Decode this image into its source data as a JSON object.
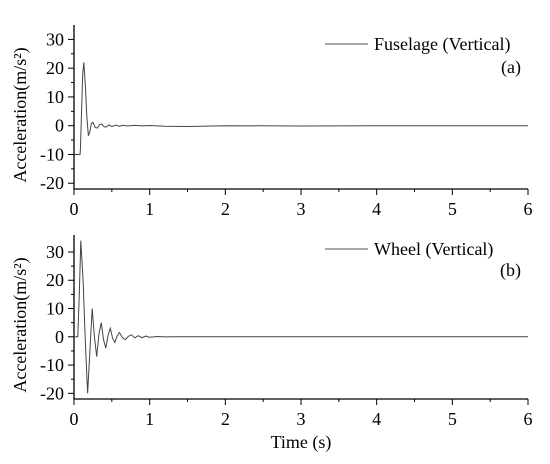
{
  "chart_data": [
    {
      "type": "line",
      "panel_label": "(a)",
      "xlabel": "",
      "ylabel": "Acceleration(m/s²)",
      "xlim": [
        0,
        6
      ],
      "ylim": [
        -22,
        35
      ],
      "xticks": [
        0,
        1,
        2,
        3,
        4,
        5,
        6
      ],
      "yticks": [
        -20,
        -10,
        0,
        10,
        20,
        30
      ],
      "legend_position": "top-right",
      "series": [
        {
          "name": "Fuselage (Vertical)",
          "x": [
            0,
            0.08,
            0.085,
            0.1,
            0.115,
            0.13,
            0.15,
            0.17,
            0.19,
            0.21,
            0.23,
            0.25,
            0.28,
            0.31,
            0.34,
            0.37,
            0.4,
            0.43,
            0.46,
            0.5,
            0.55,
            0.6,
            0.65,
            0.7,
            0.8,
            0.9,
            1.0,
            1.2,
            1.5,
            2.0,
            3.0,
            4.0,
            5.0,
            6.0
          ],
          "values": [
            -10,
            -10,
            -8,
            5,
            18,
            22,
            14,
            3,
            -3.5,
            -2,
            0.8,
            1.2,
            -0.6,
            -0.8,
            0.5,
            0.5,
            -0.4,
            -0.4,
            0.3,
            -0.3,
            0.2,
            -0.2,
            0.15,
            -0.1,
            0.1,
            -0.05,
            0.05,
            -0.2,
            -0.3,
            0,
            -0.1,
            0,
            0,
            0
          ]
        }
      ]
    },
    {
      "type": "line",
      "panel_label": "(b)",
      "xlabel": "Time (s)",
      "ylabel": "Acceleration(m/s²)",
      "xlim": [
        0,
        6
      ],
      "ylim": [
        -22,
        36
      ],
      "xticks": [
        0,
        1,
        2,
        3,
        4,
        5,
        6
      ],
      "yticks": [
        -20,
        -10,
        0,
        10,
        20,
        30
      ],
      "legend_position": "top-right",
      "series": [
        {
          "name": "Wheel (Vertical)",
          "x": [
            0,
            0.05,
            0.07,
            0.09,
            0.12,
            0.15,
            0.18,
            0.21,
            0.24,
            0.27,
            0.3,
            0.33,
            0.36,
            0.39,
            0.42,
            0.45,
            0.48,
            0.51,
            0.54,
            0.57,
            0.6,
            0.64,
            0.68,
            0.72,
            0.76,
            0.8,
            0.85,
            0.9,
            0.95,
            1.0,
            1.1,
            1.2,
            1.3,
            2.0,
            3.0,
            4.0,
            5.0,
            6.0
          ],
          "values": [
            0,
            0,
            15,
            34,
            20,
            -2,
            -20,
            -5,
            10,
            0,
            -7,
            1,
            5,
            -1,
            -4,
            0.5,
            3,
            -0.5,
            -2,
            0.3,
            1.5,
            -0.3,
            -1,
            0.2,
            0.7,
            -0.4,
            0.4,
            -0.3,
            0.25,
            -0.15,
            0.1,
            -0.05,
            0,
            0,
            0,
            0,
            0,
            0
          ]
        }
      ]
    }
  ]
}
